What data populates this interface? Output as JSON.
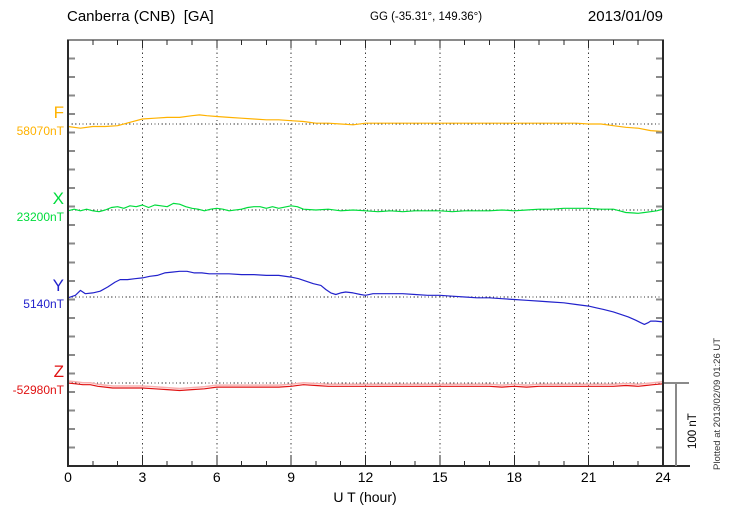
{
  "header": {
    "station": "Canberra (CNB)  [GA]",
    "coords": "GG (-35.31°, 149.36°)",
    "date": "2013/01/09"
  },
  "footer": {
    "xlabel": "U T (hour)",
    "plotted_note": "Plotted at 2013/02/09 01:26 UT"
  },
  "scale_bar": {
    "label": "100 nT",
    "nT": 100
  },
  "chart_data": {
    "type": "line",
    "title": "Canberra (CNB) [GA] magnetogram 2013/01/09",
    "xlabel": "U T (hour)",
    "x_range": [
      0,
      24
    ],
    "x_major_ticks": [
      0,
      3,
      6,
      9,
      12,
      15,
      18,
      21,
      24
    ],
    "x_minor_step_hours": 1,
    "grid": "vertical dotted at 3-hour intervals, dotted baseline per component",
    "y_scale_bar_nT": 100,
    "series": [
      {
        "name": "F",
        "base_nT": 58070,
        "base_label": "58070nT",
        "color": "#FFB200",
        "x": [
          0,
          0.5,
          1,
          1.5,
          2,
          2.5,
          3,
          3.5,
          4,
          4.5,
          5,
          5.3,
          5.6,
          6,
          6.5,
          7,
          7.5,
          8,
          8.5,
          9,
          9.5,
          10,
          10.5,
          11,
          11.5,
          12,
          12.5,
          13,
          13.5,
          14,
          14.5,
          15,
          15.5,
          16,
          16.5,
          17,
          17.5,
          18,
          18.5,
          19,
          19.5,
          20,
          20.5,
          21,
          21.5,
          22,
          22.5,
          23,
          23.5,
          24
        ],
        "values_nT": [
          58067,
          58065,
          58067,
          58067,
          58068,
          58072,
          58076,
          58077,
          58078,
          58078,
          58080,
          58081,
          58080,
          58079,
          58078,
          58077,
          58076,
          58075,
          58075,
          58074,
          58073,
          58071,
          58071,
          58070,
          58069,
          58071,
          58071,
          58071,
          58071,
          58071,
          58071,
          58071,
          58071,
          58071,
          58071,
          58071,
          58071,
          58071,
          58071,
          58071,
          58071,
          58071,
          58071,
          58070,
          58070,
          58068,
          58066,
          58065,
          58062,
          58061
        ]
      },
      {
        "name": "X",
        "base_nT": 23200,
        "base_label": "23200nT",
        "color": "#00DC3C",
        "x": [
          0,
          0.25,
          0.5,
          0.75,
          1,
          1.25,
          1.5,
          1.75,
          2,
          2.25,
          2.5,
          2.75,
          3,
          3.25,
          3.5,
          3.75,
          4,
          4.25,
          4.5,
          4.75,
          5,
          5.25,
          5.5,
          5.75,
          6,
          6.25,
          6.5,
          7,
          7.25,
          7.5,
          7.75,
          8,
          8.25,
          8.5,
          9,
          9.25,
          9.5,
          10,
          10.5,
          11,
          11.5,
          12,
          12.5,
          13,
          13.5,
          14,
          14.5,
          15,
          15.5,
          16,
          16.5,
          17,
          17.5,
          18,
          18.5,
          19,
          19.5,
          20,
          20.5,
          21,
          21.5,
          22,
          22.25,
          22.5,
          23,
          23.25,
          23.5,
          23.75,
          24
        ],
        "values_nT": [
          23199,
          23201,
          23199,
          23201,
          23199,
          23198,
          23200,
          23203,
          23204,
          23202,
          23205,
          23204,
          23206,
          23203,
          23206,
          23205,
          23204,
          23208,
          23207,
          23204,
          23202,
          23201,
          23199,
          23201,
          23202,
          23201,
          23199,
          23201,
          23203,
          23204,
          23204,
          23202,
          23204,
          23202,
          23205,
          23204,
          23201,
          23200,
          23201,
          23199,
          23200,
          23199,
          23198,
          23199,
          23198,
          23199,
          23199,
          23199,
          23198,
          23199,
          23199,
          23199,
          23200,
          23199,
          23200,
          23201,
          23201,
          23202,
          23202,
          23202,
          23201,
          23201,
          23199,
          23197,
          23196,
          23197,
          23198,
          23199,
          23201
        ]
      },
      {
        "name": "Y",
        "base_nT": 5140,
        "base_label": "5140nT",
        "color": "#2222CC",
        "x": [
          0,
          0.3,
          0.5,
          0.7,
          1,
          1.3,
          1.6,
          1.9,
          2.1,
          2.4,
          2.7,
          3,
          3.3,
          3.6,
          3.9,
          4.2,
          4.5,
          4.8,
          5.1,
          5.4,
          5.7,
          6,
          6.5,
          7,
          7.5,
          8,
          8.5,
          9,
          9.3,
          9.6,
          9.9,
          10.2,
          10.4,
          10.6,
          10.8,
          11,
          11.2,
          11.5,
          11.8,
          12,
          12.3,
          12.6,
          13,
          13.5,
          14,
          14.5,
          15,
          15.5,
          16,
          16.5,
          17,
          17.5,
          18,
          18.5,
          19,
          19.5,
          20,
          20.5,
          21,
          21.3,
          21.6,
          22,
          22.3,
          22.6,
          22.9,
          23.1,
          23.25,
          23.4,
          23.5,
          23.7,
          24
        ],
        "values_nT": [
          5139,
          5142,
          5148,
          5144,
          5145,
          5147,
          5152,
          5158,
          5161,
          5161,
          5162,
          5163,
          5165,
          5166,
          5169,
          5170,
          5171,
          5171,
          5169,
          5169,
          5168,
          5168,
          5168,
          5167,
          5167,
          5166,
          5166,
          5164,
          5162,
          5159,
          5156,
          5154,
          5149,
          5145,
          5143,
          5145,
          5146,
          5145,
          5143,
          5142,
          5144,
          5144,
          5144,
          5144,
          5143,
          5142,
          5142,
          5141,
          5140,
          5139,
          5139,
          5138,
          5137,
          5136,
          5135,
          5134,
          5133,
          5131,
          5129,
          5127,
          5125,
          5122,
          5119,
          5116,
          5112,
          5109,
          5107,
          5109,
          5111,
          5111,
          5110
        ]
      },
      {
        "name": "Z",
        "base_nT": -52980,
        "base_label": "-52980nT",
        "color": "#E01212",
        "x": [
          0,
          0.3,
          0.6,
          0.9,
          1.2,
          1.5,
          1.8,
          2.1,
          2.5,
          3,
          3.5,
          4,
          4.5,
          5,
          5.5,
          6,
          6.5,
          7,
          7.5,
          8,
          8.5,
          9,
          9.5,
          10,
          10.5,
          11,
          11.5,
          12,
          12.5,
          13,
          13.5,
          14,
          14.5,
          15,
          15.5,
          16,
          16.5,
          17,
          17.5,
          18,
          18.5,
          19,
          19.5,
          20,
          20.5,
          21,
          21.5,
          22,
          22.5,
          23,
          23.3,
          23.6,
          24
        ],
        "values_nT": [
          -52980,
          -52981,
          -52982,
          -52982,
          -52984,
          -52985,
          -52986,
          -52986,
          -52986,
          -52986,
          -52987,
          -52988,
          -52989,
          -52988,
          -52987,
          -52985,
          -52985,
          -52985,
          -52985,
          -52985,
          -52985,
          -52984,
          -52982,
          -52983,
          -52984,
          -52984,
          -52984,
          -52984,
          -52984,
          -52984,
          -52984,
          -52984,
          -52984,
          -52984,
          -52984,
          -52984,
          -52984,
          -52984,
          -52985,
          -52984,
          -52985,
          -52984,
          -52984,
          -52984,
          -52984,
          -52984,
          -52984,
          -52984,
          -52983,
          -52984,
          -52983,
          -52982,
          -52981
        ]
      }
    ]
  }
}
